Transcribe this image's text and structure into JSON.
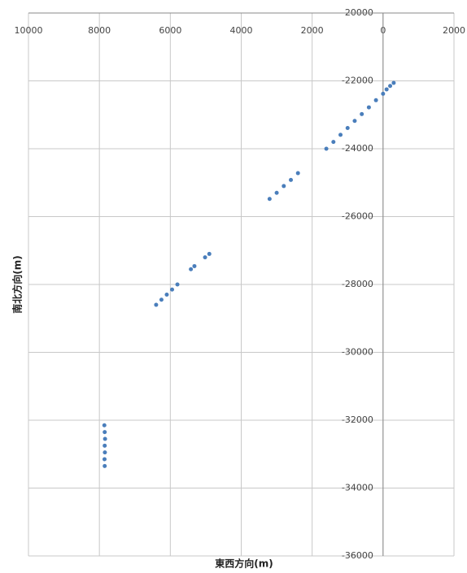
{
  "chart_data": {
    "type": "scatter",
    "x_label": "東西方向(m)",
    "y_label": "南北方向(m)",
    "xlim": [
      -10000,
      2000
    ],
    "xticks": [
      {
        "value": -10000,
        "label": "10000"
      },
      {
        "value": -8000,
        "label": "8000"
      },
      {
        "value": -6000,
        "label": "6000"
      },
      {
        "value": -4000,
        "label": "4000"
      },
      {
        "value": -2000,
        "label": "2000"
      },
      0,
      2000
    ],
    "ylim": [
      -36000,
      -20000
    ],
    "yticks": [
      -20000,
      -22000,
      -24000,
      -26000,
      -28000,
      -30000,
      -32000,
      -34000,
      -36000
    ],
    "grid": true,
    "series": [
      {
        "color": "#4a7ebb",
        "x": [
          -1600,
          -1400,
          -1200,
          -1000,
          -800,
          -600,
          -400,
          -200,
          0,
          100,
          200,
          300,
          -3200,
          -3000,
          -2800,
          -2600,
          -2400,
          -6400,
          -6250,
          -6100,
          -5950,
          -5800,
          -5420,
          -5320,
          -5020,
          -4900,
          -7860,
          -7850,
          -7840,
          -7850,
          -7845,
          -7855,
          -7850
        ],
        "values": [
          -24000,
          -23800,
          -23590,
          -23390,
          -23180,
          -22980,
          -22780,
          -22570,
          -22380,
          -22250,
          -22150,
          -22060,
          -25480,
          -25300,
          -25100,
          -24920,
          -24720,
          -28600,
          -28450,
          -28300,
          -28150,
          -28000,
          -27550,
          -27460,
          -27200,
          -27100,
          -32150,
          -32350,
          -32550,
          -32750,
          -32950,
          -33150,
          -33350
        ]
      }
    ]
  }
}
